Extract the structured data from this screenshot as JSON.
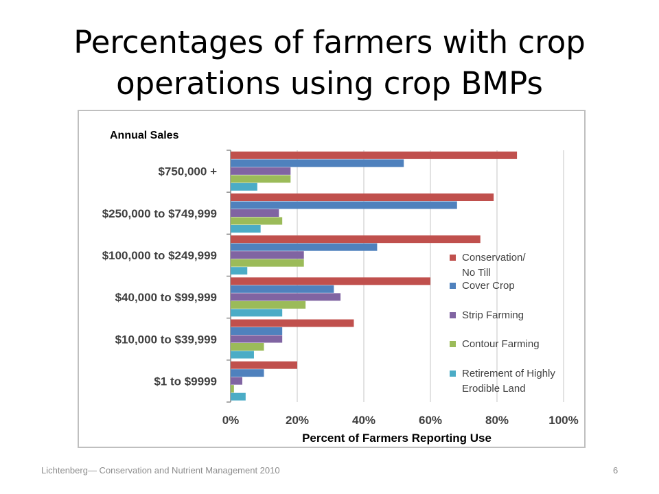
{
  "slide": {
    "title_line1": "Percentages of farmers with crop",
    "title_line2": "operations using crop BMPs",
    "footer": "Lichtenberg— Conservation and Nutrient Management 2010",
    "page_number": "6"
  },
  "chart_data": {
    "type": "bar",
    "orientation": "horizontal",
    "category_axis_title": "Annual Sales",
    "xlabel": "Percent of Farmers Reporting Use",
    "xlim": [
      0,
      100
    ],
    "x_ticks": [
      "0%",
      "20%",
      "40%",
      "60%",
      "80%",
      "100%"
    ],
    "x_tick_values": [
      0,
      20,
      40,
      60,
      80,
      100
    ],
    "grid": "vertical",
    "legend_position": "right",
    "categories": [
      "$750,000 +",
      "$250,000 to $749,999",
      "$100,000 to $249,999",
      "$40,000 to $99,999",
      "$10,000 to $39,999",
      "$1 to $9999"
    ],
    "series": [
      {
        "name": "Conservation/ No Till",
        "legend_lines": [
          "Conservation/",
          "No Till"
        ],
        "color": "#c0504d",
        "values": [
          86,
          79,
          75,
          60,
          37,
          20
        ]
      },
      {
        "name": "Cover Crop",
        "legend_lines": [
          "Cover Crop"
        ],
        "color": "#4f81bd",
        "values": [
          52,
          68,
          44,
          31,
          15.5,
          10
        ]
      },
      {
        "name": "Strip Farming",
        "legend_lines": [
          "Strip Farming"
        ],
        "color": "#8064a2",
        "values": [
          18,
          14.5,
          22,
          33,
          15.5,
          3.5
        ]
      },
      {
        "name": "Contour Farming",
        "legend_lines": [
          "Contour Farming"
        ],
        "color": "#9bbb59",
        "values": [
          18,
          15.5,
          22,
          22.5,
          10,
          1
        ]
      },
      {
        "name": "Retirement of Highly Erodible Land",
        "legend_lines": [
          "Retirement of Highly",
          "Erodible Land"
        ],
        "color": "#4bacc6",
        "values": [
          8,
          9,
          5,
          15.5,
          7,
          4.5
        ]
      }
    ]
  }
}
